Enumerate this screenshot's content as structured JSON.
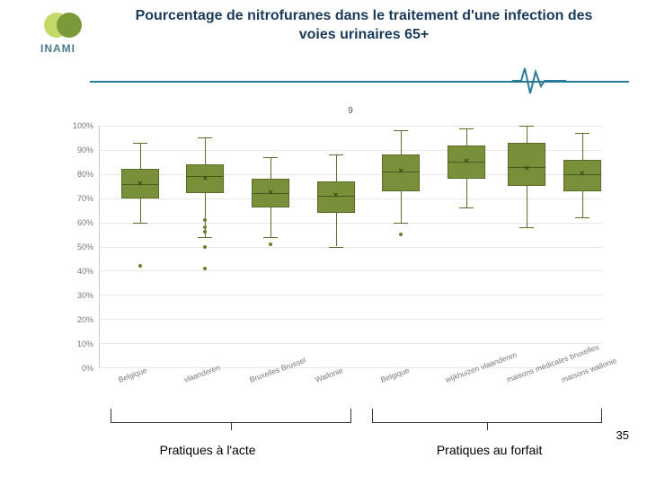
{
  "logo_text": "INAMI",
  "title": "Pourcentage de nitrofuranes dans le traitement d'une infection des voies urinaires 65+",
  "page_number": "35",
  "chart": {
    "type": "boxplot",
    "title": "9",
    "ylim": [
      0,
      100
    ],
    "ytick_step": 10,
    "ytick_suffix": "%",
    "background_color": "#ffffff",
    "grid_color": "#e8e8e8",
    "box_fill": "#7a8f3a",
    "box_border": "#5a6b2a",
    "axis_label_color": "#777",
    "axis_fontsize": 9,
    "box_width_pct": 7.5,
    "categories": [
      "Belgique",
      "vlaanderen",
      "Bruxelles Brussel",
      "Wallonie",
      "Belgique",
      "wijkhuizen vlaanderen",
      "maisons médicales bruxelles",
      "maisons wallonie"
    ],
    "x_positions_pct": [
      8,
      21,
      34,
      47,
      60,
      73,
      85,
      96
    ],
    "boxes": [
      {
        "low": 60,
        "q1": 70,
        "median": 76,
        "q3": 82,
        "high": 93,
        "mean": 76,
        "outliers": [
          42
        ]
      },
      {
        "low": 54,
        "q1": 72,
        "median": 79,
        "q3": 84,
        "high": 95,
        "mean": 78,
        "outliers": [
          61,
          58,
          56,
          50,
          41
        ]
      },
      {
        "low": 54,
        "q1": 66,
        "median": 72,
        "q3": 78,
        "high": 87,
        "mean": 72,
        "outliers": [
          51
        ]
      },
      {
        "low": 50,
        "q1": 64,
        "median": 71,
        "q3": 77,
        "high": 88,
        "mean": 71,
        "outliers": []
      },
      {
        "low": 60,
        "q1": 73,
        "median": 81,
        "q3": 88,
        "high": 98,
        "mean": 81,
        "outliers": [
          55
        ]
      },
      {
        "low": 66,
        "q1": 78,
        "median": 85,
        "q3": 92,
        "high": 99,
        "mean": 85,
        "outliers": []
      },
      {
        "low": 58,
        "q1": 75,
        "median": 83,
        "q3": 93,
        "high": 100,
        "mean": 82,
        "outliers": []
      },
      {
        "low": 62,
        "q1": 73,
        "median": 80,
        "q3": 86,
        "high": 97,
        "mean": 80,
        "outliers": []
      }
    ]
  },
  "brackets": [
    {
      "label": "Pratiques à l'acte",
      "left_pct": 4,
      "right_pct": 51,
      "label_pos_pct": 23
    },
    {
      "label": "Pratiques au forfait",
      "left_pct": 55,
      "right_pct": 100,
      "label_pos_pct": 78
    }
  ]
}
